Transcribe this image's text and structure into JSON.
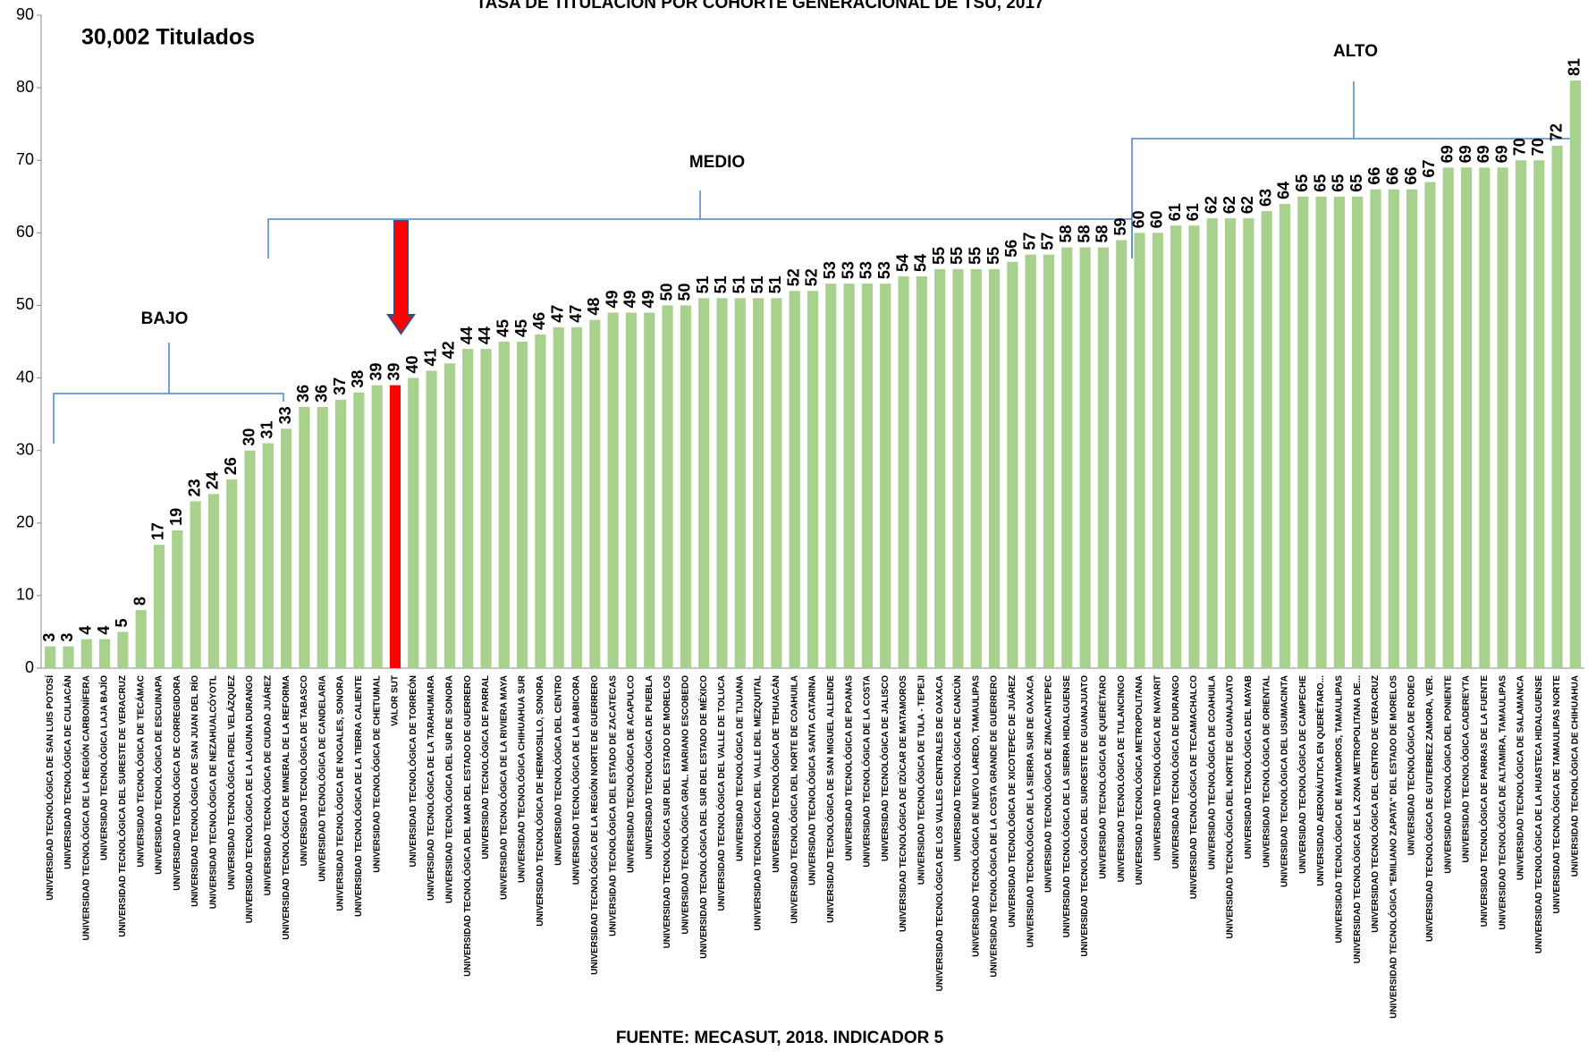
{
  "chart_data": {
    "type": "bar",
    "title": "TASA DE TITULACIÓN POR COHORTE GENERACIONAL DE TSU, 2017",
    "annotations": [
      "30,002 Titulados",
      "BAJO",
      "MEDIO",
      "ALTO"
    ],
    "source": "FUENTE: MECASUT, 2018. INDICADOR 5",
    "categories": [
      "UNIVERSIDAD TECNOLÓGICA DE SAN LUIS POTOSÍ",
      "UNIVERSIDAD TECNOLÓGICA DE CULIACÁN",
      "UNIVERSIDAD TECNOLÓGICA DE LA REGIÓN CARBONÍFERA",
      "UNIVERSIDAD TECNOLÓGICA LAJA BAJÍO",
      "UNIVERSIDAD TECNOLÓGICA DEL SURESTE DE VERACRUZ",
      "UNIVERSIDAD TECNOLÓGICA DE TECÁMAC",
      "UNIVERSIDAD TECNOLÓGICA DE ESCUINAPA",
      "UNIVERSIDAD TECNOLÓGICA DE CORREGIDORA",
      "UNIVERSIDAD TECNOLÓGICA DE SAN JUAN DEL RÍO",
      "UNIVERSIDAD TECNOLÓGICA DE NEZAHUALCÓYOTL",
      "UNIVERSIDAD TECNOLÓGICA FIDEL VELÁZQUEZ",
      "UNIVERSIDAD TECNOLÓGICA DE LA LAGUNA DURANGO",
      "UNIVERSIDAD TECNOLÓGICA DE CIUDAD JUÁREZ",
      "UNIVERSIDAD TECNOLÓGICA DE MINERAL DE LA REFORMA",
      "UNIVERSIDAD TECNOLÓGICA DE TABASCO",
      "UNIVERSIDAD TECNOLÓGICA DE CANDELARIA",
      "UNIVERSIDAD TECNOLÓGICA DE NOGALES, SONORA",
      "UNIVERSIDAD TECNOLÓGICA DE LA TIERRA CALIENTE",
      "UNIVERSIDAD TECNOLÓGICA DE CHETUMAL",
      "VALOR SUT",
      "UNIVERSIDAD TECNOLÓGICA DE TORREÓN",
      "UNIVERSIDAD TECNOLÓGICA DE LA TARAHUMARA",
      "UNIVERSIDAD TECNOLÓGICA DEL SUR DE SONORA",
      "UNIVERSIDAD TECNOLÓGICA DEL MAR DEL ESTADO DE GUERRERO",
      "UNIVERSIDAD TECNOLÓGICA DE PARRAL",
      "UNIVERSIDAD TECNOLÓGICA DE LA RIVIERA MAYA",
      "UNIVERSIDAD TECNOLÓGICA CHIHUAHUA SUR",
      "UNIVERSIDAD TECNOLÓGICA DE HERMOSILLO, SONORA",
      "UNIVERSIDAD TECNOLÓGICA DEL CENTRO",
      "UNIVERSIDAD TECNOLÓGICA DE LA BABICORA",
      "UNIVERSIDAD TECNOLÓGICA DE LA REGIÓN NORTE DE GUERRERO",
      "UNIVERSIDAD TECNOLÓGICA DEL ESTADO DE ZACATECAS",
      "UNIVERSIDAD TECNOLÓGICA DE ACAPULCO",
      "UNIVERSIDAD TECNOLÓGICA DE PUEBLA",
      "UNIVERSIDAD TECNOLÓGICA SUR DEL ESTADO DE MORELOS",
      "UNIVERSIDAD TECNOLÓGICA GRAL. MARIANO ESCOBEDO",
      "UNIVERSIDAD TECNOLÓGICA DEL SUR DEL ESTADO DE MÉXICO",
      "UNIVERSIDAD TECNOLÓGICA DEL VALLE DE TOLUCA",
      "UNIVERSIDAD TECNOLÓGICA DE TIJUANA",
      "UNIVERSIDAD TECNOLÓGICA DEL VALLE DEL MEZQUITAL",
      "UNIVERSIDAD TECNOLÓGICA DE TEHUACÁN",
      "UNIVERSIDAD TECNOLÓGICA DEL NORTE DE COAHUILA",
      "UNIVERSIDAD TECNOLÓGICA SANTA CATARINA",
      "UNIVERSIDAD TECNOLÓGICA DE SAN MIGUEL ALLENDE",
      "UNIVERSIDAD TECNOLÓGICA DE POANAS",
      "UNIVERSIDAD TECNOLÓGICA DE LA COSTA",
      "UNIVERSIDAD TECNOLÓGICA DE JALISCO",
      "UNIVERSIDAD TECNOLÓGICA DE IZÚCAR DE MATAMOROS",
      "UNIVERSIDAD TECNOLÓGICA DE TULA - TEPEJI",
      "UNIVERSIDAD TECNOLÓGICA DE LOS VALLES CENTRALES DE OAXACA",
      "UNIVERSIDAD TECNOLÓGICA DE CANCÚN",
      "UNIVERSIDAD TECNOLÓGICA DE NUEVO LAREDO, TAMAULIPAS",
      "UNIVERSIDAD TECNOLÓGICA DE LA COSTA GRANDE DE GUERRERO",
      "UNIVERSIDAD TECNOLÓGICA DE XICOTEPEC DE JUÁREZ",
      "UNIVERSIDAD TECNOLÓGICA DE LA SIERRA SUR DE OAXACA",
      "UNIVERSIDAD TECNOLÓGICA DE ZINACANTEPEC",
      "UNIVERSIDAD TECNOLÓGICA DE LA SIERRA HIDALGUENSE",
      "UNIVERSIDAD TECNOLÓGICA DEL SUROESTE DE GUANAJUATO",
      "UNIVERSIDAD TECNOLÓGICA DE QUERÉTARO",
      "UNIVERSIDAD TECNOLÓGICA DE TULANCINGO",
      "UNIVERSIDAD TECNOLÓGICA METROPOLITANA",
      "UNIVERSIDAD TECNOLÓGICA DE NAYARIT",
      "UNIVERSIDAD TECNOLÓGICA DE DURANGO",
      "UNIVERSIDAD TECNOLÓGICA DE TECAMACHALCO",
      "UNIVERSIDAD TECNOLÓGICA DE COAHUILA",
      "UNIVERSIDAD TECNOLÓGICA DEL NORTE DE GUANAJUATO",
      "UNIVERSIDAD TECNOLÓGICA DEL MAYAB",
      "UNIVERSIDAD TECNOLÓGICA DE ORIENTAL",
      "UNIVERSIDAD TECNOLÓGICA DEL USUMACINTA",
      "UNIVERSIDAD TECNOLÓGICA DE CAMPECHE",
      "UNIVERSIDAD AERONÁUTICA EN QUERÉTARO...",
      "UNIVERSIDAD TECNOLÓGICA DE MATAMOROS, TAMAULIPAS",
      "UNIVERSIDAD TECNOLÓGICA DE LA ZONA METROPOLITANA DE...",
      "UNIVERSIDAD TECNOLÓGICA DEL CENTRO DE VERACRUZ",
      "UNIVERSIDAD TECNOLÓGICA \"EMILIANO ZAPATA\" DEL ESTADO DE MORELOS",
      "UNIVERSIDAD TECNOLÓGICA DE RODEO",
      "UNIVERSIDAD TECNOLÓGICA DE GUTIERREZ ZAMORA, VER.",
      "UNIVERSIDAD TECNOLÓGICA DEL PONIENTE",
      "UNIVERSIDAD TECNOLÓGICA CADEREYTA",
      "UNIVERSIDAD TECNOLÓGICA DE PARRAS DE LA FUENTE",
      "UNIVERSIDAD TECNOLÓGICA DE ALTAMIRA, TAMAULIPAS",
      "UNIVERSIDAD TECNOLÓGICA DE SALAMANCA",
      "UNIVERSIDAD TECNOLÓGICA DE LA HUASTECA HIDALGUENSE",
      "UNIVERSIDAD TECNOLÓGICA DE TAMAULIPAS NORTE",
      "UNIVERSIDAD TECNOLÓGICA DE CHIHUAHUA"
    ],
    "values": [
      3,
      3,
      4,
      4,
      5,
      8,
      17,
      19,
      23,
      24,
      26,
      30,
      31,
      33,
      36,
      36,
      37,
      38,
      39,
      39,
      40,
      41,
      42,
      44,
      44,
      45,
      45,
      46,
      47,
      47,
      48,
      49,
      49,
      49,
      50,
      50,
      51,
      51,
      51,
      51,
      51,
      52,
      52,
      53,
      53,
      53,
      53,
      54,
      54,
      55,
      55,
      55,
      55,
      56,
      57,
      57,
      58,
      58,
      58,
      59,
      60,
      60,
      61,
      61,
      62,
      62,
      62,
      63,
      64,
      65,
      65,
      65,
      65,
      66,
      66,
      66,
      67,
      69,
      69,
      69,
      69,
      70,
      70,
      72,
      81
    ],
    "colors": [
      "#a9d18e",
      "#a9d18e",
      "#a9d18e",
      "#a9d18e",
      "#a9d18e",
      "#a9d18e",
      "#a9d18e",
      "#a9d18e",
      "#a9d18e",
      "#a9d18e",
      "#a9d18e",
      "#a9d18e",
      "#a9d18e",
      "#a9d18e",
      "#a9d18e",
      "#a9d18e",
      "#a9d18e",
      "#a9d18e",
      "#a9d18e",
      "#ff0000",
      "#a9d18e",
      "#a9d18e",
      "#a9d18e",
      "#a9d18e",
      "#a9d18e",
      "#a9d18e",
      "#a9d18e",
      "#a9d18e",
      "#a9d18e",
      "#a9d18e",
      "#a9d18e",
      "#a9d18e",
      "#a9d18e",
      "#a9d18e",
      "#a9d18e",
      "#a9d18e",
      "#a9d18e",
      "#a9d18e",
      "#a9d18e",
      "#a9d18e",
      "#a9d18e",
      "#a9d18e",
      "#a9d18e",
      "#a9d18e",
      "#a9d18e",
      "#a9d18e",
      "#a9d18e",
      "#a9d18e",
      "#a9d18e",
      "#a9d18e",
      "#a9d18e",
      "#a9d18e",
      "#a9d18e",
      "#a9d18e",
      "#a9d18e",
      "#a9d18e",
      "#a9d18e",
      "#a9d18e",
      "#a9d18e",
      "#a9d18e",
      "#a9d18e",
      "#a9d18e",
      "#a9d18e",
      "#a9d18e",
      "#a9d18e",
      "#a9d18e",
      "#a9d18e",
      "#a9d18e",
      "#a9d18e",
      "#a9d18e",
      "#a9d18e",
      "#a9d18e",
      "#a9d18e",
      "#a9d18e",
      "#a9d18e",
      "#a9d18e",
      "#a9d18e",
      "#a9d18e",
      "#a9d18e",
      "#a9d18e",
      "#a9d18e",
      "#a9d18e",
      "#a9d18e",
      "#a9d18e",
      "#a9d18e"
    ],
    "ylim": [
      0,
      90
    ],
    "yticks": [
      0,
      10,
      20,
      30,
      40,
      50,
      60,
      70,
      80,
      90
    ],
    "grid": false
  }
}
